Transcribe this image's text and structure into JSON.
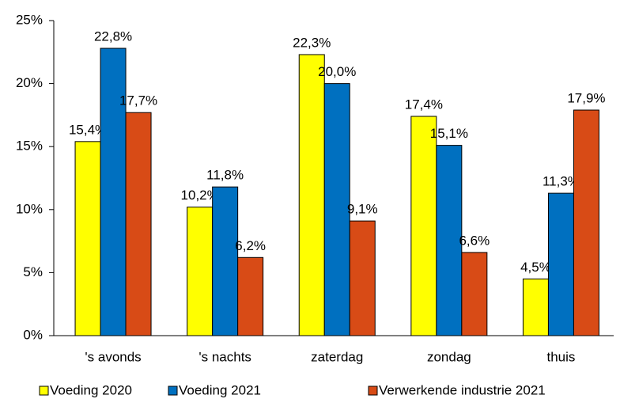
{
  "chart_data": {
    "type": "bar",
    "categories": [
      "'s avonds",
      "'s nachts",
      "zaterdag",
      "zondag",
      "thuis"
    ],
    "series": [
      {
        "name": "Voeding 2020",
        "color": "#ffff00",
        "values": [
          15.4,
          10.2,
          22.3,
          17.4,
          4.5
        ],
        "value_labels": [
          "15,4%",
          "10,2%",
          "22,3%",
          "17,4%",
          "4,5%"
        ]
      },
      {
        "name": "Voeding 2021",
        "color": "#0070c0",
        "values": [
          22.8,
          11.8,
          20.0,
          15.1,
          11.3
        ],
        "value_labels": [
          "22,8%",
          "11,8%",
          "20,0%",
          "15,1%",
          "11,3%"
        ]
      },
      {
        "name": "Verwerkende industrie 2021",
        "color": "#d84b16",
        "values": [
          17.7,
          6.2,
          9.1,
          6.6,
          17.9
        ],
        "value_labels": [
          "17,7%",
          "6,2%",
          "9,1%",
          "6,6%",
          "17,9%"
        ]
      }
    ],
    "ylim": [
      0,
      25
    ],
    "yticks": [
      {
        "value": 0,
        "label": "0%"
      },
      {
        "value": 5,
        "label": "5%"
      },
      {
        "value": 10,
        "label": "10%"
      },
      {
        "value": 15,
        "label": "15%"
      },
      {
        "value": 20,
        "label": "20%"
      },
      {
        "value": 25,
        "label": "25%"
      }
    ],
    "legend": "bottom"
  }
}
